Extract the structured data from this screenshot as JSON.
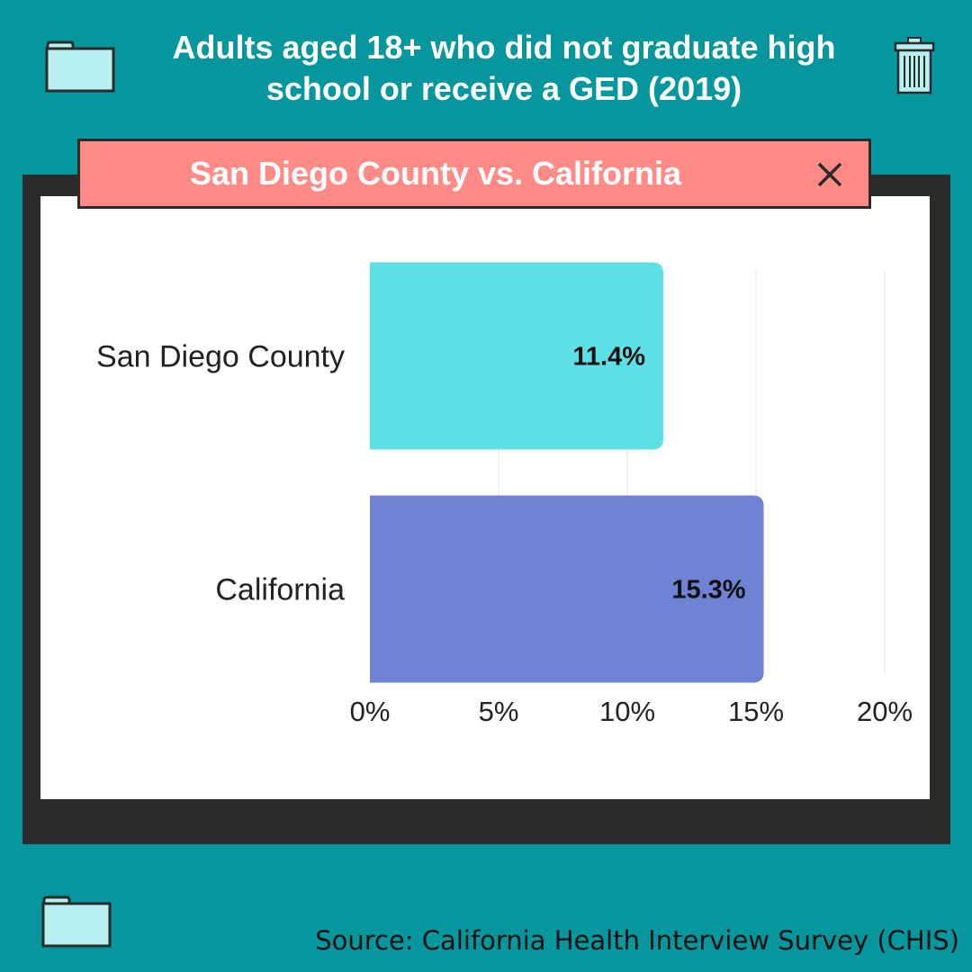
{
  "header": {
    "title": "Adults aged 18+ who did not graduate high school or receive a GED (2019)",
    "icons": [
      "folder-icon",
      "trash-icon"
    ]
  },
  "window": {
    "title": "San Diego County vs. California",
    "close_icon": "close-icon"
  },
  "footer": {
    "source": "Source: California Health Interview Survey (CHIS)"
  },
  "colors": {
    "background": "#05979d",
    "frame": "#2b2b2b",
    "titlebar": "#ff8a86",
    "icon_fill": "#b8f0f1"
  },
  "chart_data": {
    "type": "bar",
    "orientation": "horizontal",
    "title": "",
    "xlabel": "",
    "ylabel": "",
    "categories": [
      "San Diego County",
      "California"
    ],
    "values": [
      11.4,
      15.3
    ],
    "value_labels": [
      "11.4%",
      "15.3%"
    ],
    "bar_colors": [
      "#5de0e6",
      "#7082d4"
    ],
    "xlim": [
      0,
      20
    ],
    "xticks": [
      0,
      5,
      10,
      15,
      20
    ],
    "xtick_labels": [
      "0%",
      "5%",
      "10%",
      "15%",
      "20%"
    ],
    "grid": true,
    "legend": "none"
  }
}
